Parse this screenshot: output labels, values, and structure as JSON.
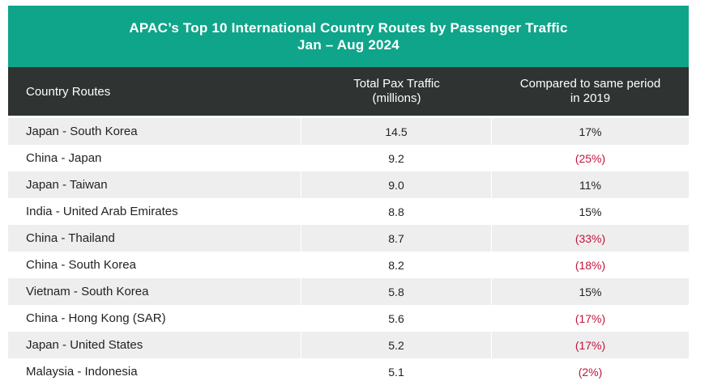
{
  "chart_data": {
    "type": "table",
    "title": "APAC’s Top 10 International Country Routes by Passenger Traffic",
    "subtitle": "Jan – Aug 2024",
    "columns": [
      "Country Routes",
      "Total Pax Traffic (millions)",
      "Compared to same period in 2019"
    ],
    "header": {
      "col1": "Country Routes",
      "col2_line1": "Total Pax Traffic",
      "col2_line2": "(millions)",
      "col3_line1": "Compared to same period",
      "col3_line2": "in 2019"
    },
    "rows": [
      {
        "route": "Japan - South Korea",
        "traffic": "14.5",
        "change": "17%",
        "negative": false
      },
      {
        "route": "China - Japan",
        "traffic": "9.2",
        "change": "(25%)",
        "negative": true
      },
      {
        "route": "Japan - Taiwan",
        "traffic": "9.0",
        "change": "11%",
        "negative": false
      },
      {
        "route": "India - United Arab Emirates",
        "traffic": "8.8",
        "change": "15%",
        "negative": false
      },
      {
        "route": "China - Thailand",
        "traffic": "8.7",
        "change": "(33%)",
        "negative": true
      },
      {
        "route": "China - South Korea",
        "traffic": "8.2",
        "change": "(18%)",
        "negative": true
      },
      {
        "route": "Vietnam - South Korea",
        "traffic": "5.8",
        "change": "15%",
        "negative": false
      },
      {
        "route": "China - Hong Kong (SAR)",
        "traffic": "5.6",
        "change": "(17%)",
        "negative": true
      },
      {
        "route": "Japan - United States",
        "traffic": "5.2",
        "change": "(17%)",
        "negative": true
      },
      {
        "route": "Malaysia - Indonesia",
        "traffic": "5.1",
        "change": "(2%)",
        "negative": true
      }
    ]
  },
  "colors": {
    "title_bg": "#0fa58a",
    "header_bg": "#2f3331",
    "row_shade": "#eeeeee",
    "negative_text": "#c0143c"
  }
}
